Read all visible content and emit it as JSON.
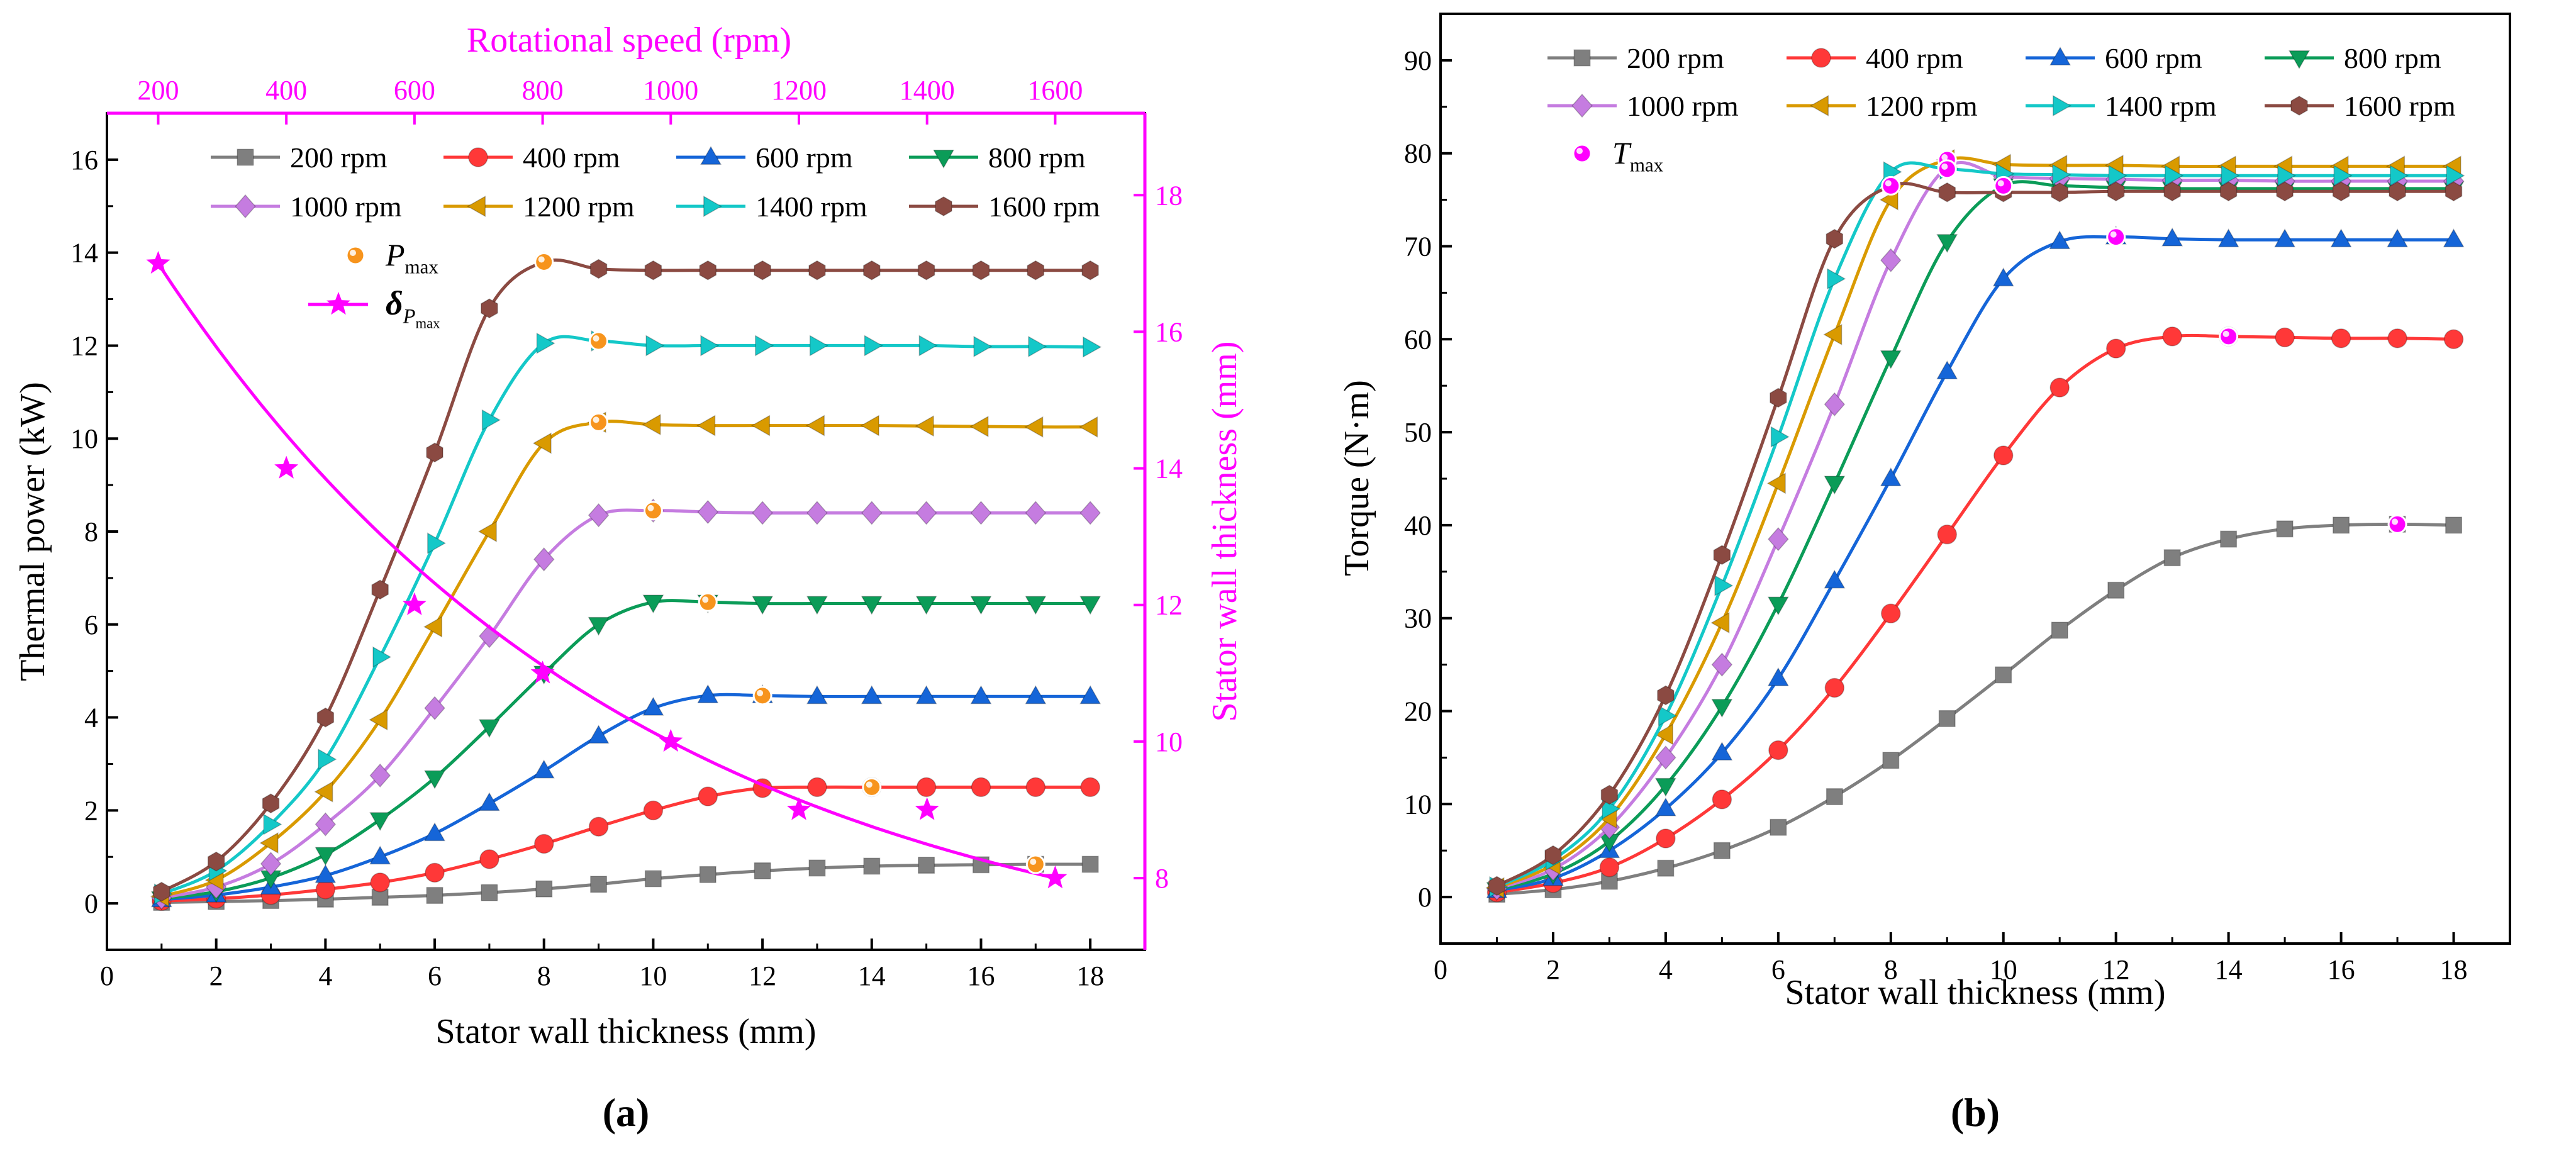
{
  "chart_data": [
    {
      "panel_label": "(a)",
      "type": "line",
      "xlabel": "Stator wall thickness (mm)",
      "ylabel": "Thermal power (kW)",
      "y2label": "Stator wall thickness (mm)",
      "x2label": "Rotational speed (rpm)",
      "xlim": [
        0,
        19
      ],
      "ylim": [
        -1,
        17
      ],
      "x_ticks": [
        0,
        2,
        4,
        6,
        8,
        10,
        12,
        14,
        16,
        18
      ],
      "y_ticks": [
        0,
        2,
        4,
        6,
        8,
        10,
        12,
        14,
        16
      ],
      "y2lim": [
        6.95,
        19.2
      ],
      "y2_ticks": [
        8,
        10,
        12,
        14,
        16,
        18
      ],
      "x2lim": [
        120,
        1740
      ],
      "x2_ticks": [
        200,
        400,
        600,
        800,
        1000,
        1200,
        1400,
        1600
      ],
      "x": [
        1,
        2,
        3,
        4,
        5,
        6,
        7,
        8,
        9,
        10,
        11,
        12,
        13,
        14,
        15,
        16,
        17,
        18
      ],
      "series": [
        {
          "name": "200 rpm",
          "color": "#7f7f7f",
          "marker": "square",
          "values": [
            0.02,
            0.04,
            0.06,
            0.09,
            0.13,
            0.17,
            0.23,
            0.31,
            0.41,
            0.53,
            0.62,
            0.7,
            0.76,
            0.8,
            0.82,
            0.83,
            0.84,
            0.84
          ]
        },
        {
          "name": "400 rpm",
          "color": "#ff3838",
          "marker": "circle",
          "values": [
            0.05,
            0.1,
            0.18,
            0.3,
            0.45,
            0.66,
            0.95,
            1.28,
            1.65,
            2.0,
            2.3,
            2.48,
            2.5,
            2.5,
            2.5,
            2.5,
            2.5,
            2.5
          ]
        },
        {
          "name": "600 rpm",
          "color": "#1565d8",
          "marker": "triangle-up",
          "values": [
            0.08,
            0.18,
            0.35,
            0.6,
            1.0,
            1.5,
            2.15,
            2.85,
            3.6,
            4.2,
            4.47,
            4.47,
            4.45,
            4.45,
            4.45,
            4.45,
            4.45,
            4.45
          ]
        },
        {
          "name": "800 rpm",
          "color": "#0b9c58",
          "marker": "triangle-down",
          "values": [
            0.1,
            0.25,
            0.55,
            1.05,
            1.8,
            2.7,
            3.8,
            4.95,
            6.0,
            6.48,
            6.48,
            6.45,
            6.45,
            6.45,
            6.45,
            6.45,
            6.45,
            6.45
          ]
        },
        {
          "name": "1000 rpm",
          "color": "#c57ce0",
          "marker": "diamond",
          "values": [
            0.12,
            0.35,
            0.85,
            1.7,
            2.75,
            4.2,
            5.75,
            7.4,
            8.35,
            8.45,
            8.42,
            8.4,
            8.4,
            8.4,
            8.4,
            8.4,
            8.4,
            8.4
          ]
        },
        {
          "name": "1200 rpm",
          "color": "#d99a00",
          "marker": "triangle-left",
          "values": [
            0.15,
            0.5,
            1.3,
            2.4,
            3.95,
            5.95,
            8.0,
            9.9,
            10.35,
            10.3,
            10.28,
            10.28,
            10.28,
            10.28,
            10.27,
            10.26,
            10.25,
            10.25
          ]
        },
        {
          "name": "1400 rpm",
          "color": "#14c8c8",
          "marker": "triangle-right",
          "values": [
            0.2,
            0.7,
            1.7,
            3.1,
            5.3,
            7.75,
            10.4,
            12.05,
            12.1,
            12.0,
            12.0,
            12.0,
            12.0,
            12.0,
            12.0,
            11.98,
            11.98,
            11.97
          ]
        },
        {
          "name": "1600 rpm",
          "color": "#8b4a42",
          "marker": "hexagon",
          "values": [
            0.25,
            0.9,
            2.15,
            4.0,
            6.75,
            9.7,
            12.8,
            13.8,
            13.65,
            13.62,
            13.62,
            13.62,
            13.62,
            13.62,
            13.62,
            13.62,
            13.62,
            13.62
          ]
        }
      ],
      "max_points": {
        "name": "P",
        "subscript": "max",
        "color": "#f7941d",
        "points": [
          [
            17,
            0.84
          ],
          [
            14,
            2.5
          ],
          [
            12,
            4.47
          ],
          [
            11,
            6.48
          ],
          [
            10,
            8.45
          ],
          [
            9,
            10.35
          ],
          [
            9,
            12.1
          ],
          [
            8,
            13.8
          ]
        ]
      },
      "delta_series": {
        "name": "δ",
        "subscript_main": "P",
        "subscript_sub": "max",
        "color": "#ff00ff",
        "marker": "star",
        "axes": "secondary",
        "points": [
          [
            200,
            17
          ],
          [
            400,
            14
          ],
          [
            600,
            12
          ],
          [
            800,
            11
          ],
          [
            1000,
            10
          ],
          [
            1200,
            9
          ],
          [
            1400,
            9
          ],
          [
            1600,
            8
          ]
        ]
      }
    },
    {
      "panel_label": "(b)",
      "type": "line",
      "xlabel": "Stator wall thickness (mm)",
      "ylabel": "Torque (N·m)",
      "xlim": [
        0,
        19
      ],
      "ylim": [
        -5,
        95
      ],
      "x_ticks": [
        0,
        2,
        4,
        6,
        8,
        10,
        12,
        14,
        16,
        18
      ],
      "y_ticks": [
        0,
        10,
        20,
        30,
        40,
        50,
        60,
        70,
        80,
        90
      ],
      "x": [
        1,
        2,
        3,
        4,
        5,
        6,
        7,
        8,
        9,
        10,
        11,
        12,
        13,
        14,
        15,
        16,
        17,
        18
      ],
      "series": [
        {
          "name": "200 rpm",
          "color": "#7f7f7f",
          "marker": "square",
          "values": [
            0.3,
            0.8,
            1.7,
            3.1,
            5.0,
            7.5,
            10.8,
            14.7,
            19.2,
            23.9,
            28.7,
            33.0,
            36.5,
            38.5,
            39.6,
            40.0,
            40.1,
            40.0
          ]
        },
        {
          "name": "400 rpm",
          "color": "#ff3838",
          "marker": "circle",
          "values": [
            0.5,
            1.5,
            3.2,
            6.3,
            10.5,
            15.8,
            22.5,
            30.5,
            39.0,
            47.5,
            54.8,
            59.0,
            60.3,
            60.3,
            60.2,
            60.1,
            60.1,
            60.0
          ]
        },
        {
          "name": "600 rpm",
          "color": "#1565d8",
          "marker": "triangle-up",
          "values": [
            0.7,
            2.0,
            5.0,
            9.5,
            15.5,
            23.5,
            34.0,
            45.0,
            56.5,
            66.5,
            70.5,
            71.0,
            70.8,
            70.7,
            70.7,
            70.7,
            70.7,
            70.7
          ]
        },
        {
          "name": "800 rpm",
          "color": "#0b9c58",
          "marker": "triangle-down",
          "values": [
            0.8,
            2.5,
            6.0,
            12.0,
            20.5,
            31.5,
            44.5,
            58.0,
            70.5,
            76.5,
            76.5,
            76.3,
            76.2,
            76.2,
            76.2,
            76.2,
            76.2,
            76.2
          ]
        },
        {
          "name": "1000 rpm",
          "color": "#c57ce0",
          "marker": "diamond",
          "values": [
            0.9,
            3.0,
            7.5,
            15.0,
            25.0,
            38.5,
            53.0,
            68.5,
            78.5,
            77.5,
            77.3,
            77.2,
            77.1,
            77.1,
            77.0,
            77.0,
            77.0,
            77.0
          ]
        },
        {
          "name": "1200 rpm",
          "color": "#d99a00",
          "marker": "triangle-left",
          "values": [
            1.0,
            3.5,
            8.5,
            17.5,
            29.5,
            44.5,
            60.5,
            75.0,
            79.3,
            78.8,
            78.7,
            78.7,
            78.6,
            78.6,
            78.6,
            78.6,
            78.6,
            78.6
          ]
        },
        {
          "name": "1400 rpm",
          "color": "#14c8c8",
          "marker": "triangle-right",
          "values": [
            1.1,
            4.0,
            9.5,
            19.5,
            33.5,
            49.5,
            66.5,
            78.0,
            78.3,
            77.8,
            77.7,
            77.6,
            77.6,
            77.6,
            77.6,
            77.6,
            77.6,
            77.6
          ]
        },
        {
          "name": "1600 rpm",
          "color": "#8b4a42",
          "marker": "hexagon",
          "values": [
            1.2,
            4.5,
            11.0,
            21.7,
            36.8,
            53.7,
            70.8,
            76.5,
            75.8,
            75.8,
            75.8,
            75.9,
            75.9,
            75.9,
            75.9,
            75.9,
            75.9,
            75.9
          ]
        }
      ],
      "max_points": {
        "name": "T",
        "subscript": "max",
        "color": "#ff00ff",
        "points": [
          [
            17,
            40.1
          ],
          [
            14,
            60.3
          ],
          [
            12,
            71.0
          ],
          [
            10,
            76.5
          ],
          [
            9,
            78.5
          ],
          [
            9,
            79.3
          ],
          [
            9,
            78.3
          ],
          [
            8,
            76.5
          ]
        ]
      }
    }
  ]
}
